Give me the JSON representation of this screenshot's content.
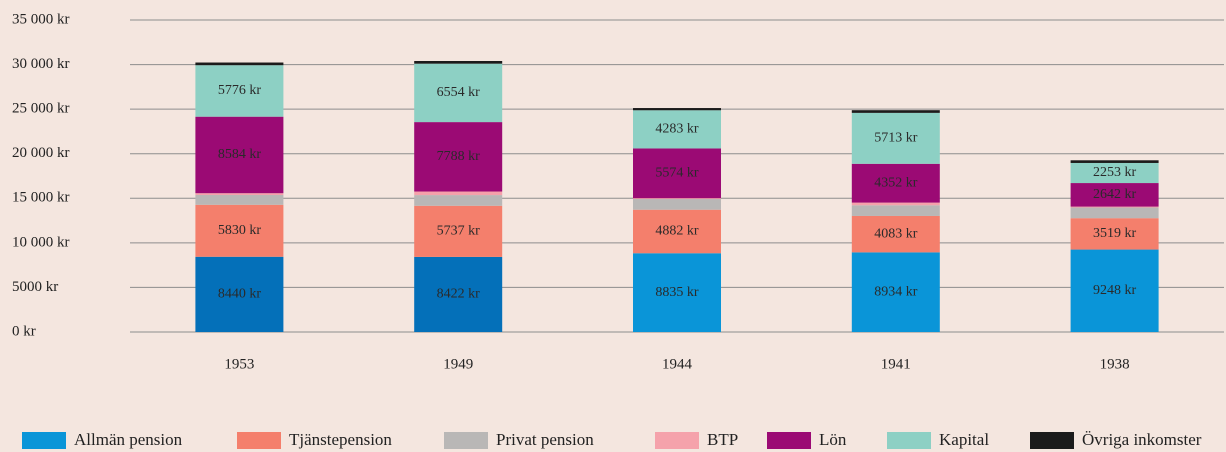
{
  "chart_data": {
    "type": "stacked_bar",
    "categories": [
      "1953",
      "1949",
      "1944",
      "1941",
      "1938"
    ],
    "ylim": [
      0,
      35000
    ],
    "yticks": [
      {
        "value": 0,
        "label": "0 kr"
      },
      {
        "value": 5000,
        "label": "5000 kr"
      },
      {
        "value": 10000,
        "label": "10 000 kr"
      },
      {
        "value": 15000,
        "label": "15 000 kr"
      },
      {
        "value": 20000,
        "label": "20 000 kr"
      },
      {
        "value": 25000,
        "label": "25 000 kr"
      },
      {
        "value": 30000,
        "label": "30 000 kr"
      },
      {
        "value": 35000,
        "label": "35 000 kr"
      }
    ],
    "grid": true,
    "legend": "bottom",
    "series": [
      {
        "name": "Allmän pension",
        "color": "#0a95d8",
        "colors": [
          "#0470b9",
          "#0470b9",
          "#0a95d8",
          "#0a95d8",
          "#0a95d8"
        ],
        "values": [
          8440,
          8422,
          8835,
          8934,
          9248
        ],
        "value_labels": [
          "8440 kr",
          "8422 kr",
          "8835 kr",
          "8934 kr",
          "9248 kr"
        ]
      },
      {
        "name": "Tjänstepension",
        "color": "#f47f6c",
        "values": [
          5830,
          5737,
          4882,
          4083,
          3519
        ],
        "value_labels": [
          "5830 kr",
          "5737 kr",
          "4882 kr",
          "4083 kr",
          "3519 kr"
        ]
      },
      {
        "name": "Privat pension",
        "color": "#b9b7b6",
        "values": [
          1100,
          1200,
          1200,
          1200,
          1200
        ]
      },
      {
        "name": "BTP",
        "color": "#f5a2ab",
        "values": [
          200,
          400,
          100,
          300,
          100
        ]
      },
      {
        "name": "Lön",
        "color": "#9b0a74",
        "values": [
          8584,
          7788,
          5574,
          4352,
          2642
        ],
        "value_labels": [
          "8584 kr",
          "7788 kr",
          "5574 kr",
          "4352 kr",
          "2642 kr"
        ]
      },
      {
        "name": "Kapital",
        "color": "#8dd0c4",
        "values": [
          5776,
          6554,
          4283,
          5713,
          2253
        ],
        "value_labels": [
          "5776 kr",
          "6554 kr",
          "4283 kr",
          "5713 kr",
          "2253 kr"
        ]
      },
      {
        "name": "Övriga inkomster",
        "color": "#1b1b1b",
        "values": [
          300,
          300,
          250,
          300,
          300
        ]
      }
    ]
  }
}
